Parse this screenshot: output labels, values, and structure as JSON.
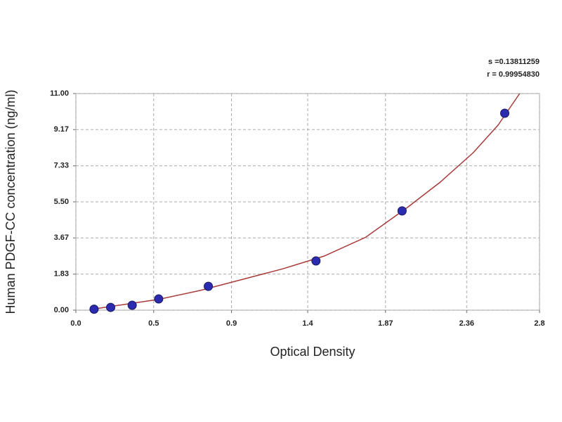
{
  "chart_data": {
    "type": "scatter",
    "xlabel": "Optical Density",
    "ylabel": "Human PDGF-CC concentration (ng/ml)",
    "annotations": [
      "s =0.13811259",
      "r = 0.99954830"
    ],
    "points": {
      "color": "#2b2bb0",
      "x": [
        0.11,
        0.21,
        0.34,
        0.5,
        0.8,
        1.45,
        1.97,
        2.59
      ],
      "values": [
        0.05,
        0.14,
        0.25,
        0.57,
        1.21,
        2.5,
        5.04,
        10.0
      ]
    },
    "fit": {
      "color": "#a83a3a",
      "x": [
        0.1,
        0.3,
        0.5,
        0.75,
        1.0,
        1.25,
        1.5,
        1.75,
        2.0,
        2.2,
        2.4,
        2.55,
        2.68
      ],
      "values": [
        0.05,
        0.3,
        0.55,
        1.0,
        1.55,
        2.1,
        2.75,
        3.7,
        5.2,
        6.5,
        8.0,
        9.4,
        11.0
      ]
    },
    "xlim": [
      0,
      2.8
    ],
    "xticks": [
      {
        "value": 0,
        "label": "0.0"
      },
      {
        "value": 0.47,
        "label": "0.5"
      },
      {
        "value": 0.94,
        "label": "0.9"
      },
      1.4,
      1.87,
      2.36,
      2.8
    ],
    "ylim": [
      0,
      11
    ],
    "yticks": [
      {
        "value": 0,
        "label": "0.00"
      },
      1.83,
      3.67,
      {
        "value": 5.5,
        "label": "5.50"
      },
      7.33,
      9.17,
      {
        "value": 11,
        "label": "11.00"
      }
    ],
    "grid": true
  }
}
